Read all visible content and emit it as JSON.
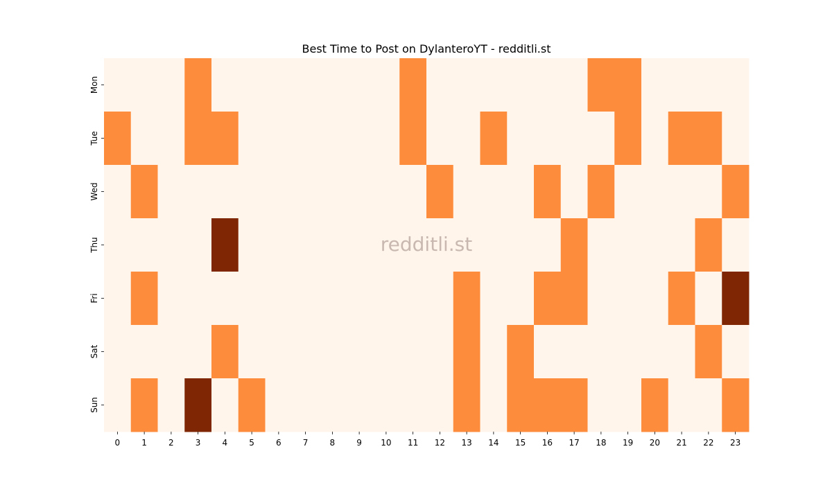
{
  "chart_data": {
    "type": "heatmap",
    "title": "Best Time to Post on DylanteroYT - redditli.st",
    "watermark": "redditli.st",
    "xlabel": "",
    "ylabel": "",
    "x": [
      "0",
      "1",
      "2",
      "3",
      "4",
      "5",
      "6",
      "7",
      "8",
      "9",
      "10",
      "11",
      "12",
      "13",
      "14",
      "15",
      "16",
      "17",
      "18",
      "19",
      "20",
      "21",
      "22",
      "23"
    ],
    "y": [
      "Mon",
      "Tue",
      "Wed",
      "Thu",
      "Fri",
      "Sat",
      "Sun"
    ],
    "colorscale": [
      "#fff5eb",
      "#fd8d3c",
      "#7f2704"
    ],
    "values": [
      [
        0,
        0,
        0,
        1,
        0,
        0,
        0,
        0,
        0,
        0,
        0,
        1,
        0,
        0,
        0,
        0,
        0,
        0,
        1,
        1,
        0,
        0,
        0,
        0
      ],
      [
        1,
        0,
        0,
        1,
        1,
        0,
        0,
        0,
        0,
        0,
        0,
        1,
        0,
        0,
        1,
        0,
        0,
        0,
        0,
        1,
        0,
        1,
        1,
        0
      ],
      [
        0,
        1,
        0,
        0,
        0,
        0,
        0,
        0,
        0,
        0,
        0,
        0,
        1,
        0,
        0,
        0,
        1,
        0,
        1,
        0,
        0,
        0,
        0,
        1
      ],
      [
        0,
        0,
        0,
        0,
        2,
        0,
        0,
        0,
        0,
        0,
        0,
        0,
        0,
        0,
        0,
        0,
        0,
        1,
        0,
        0,
        0,
        0,
        1,
        0
      ],
      [
        0,
        1,
        0,
        0,
        0,
        0,
        0,
        0,
        0,
        0,
        0,
        0,
        0,
        1,
        0,
        0,
        1,
        1,
        0,
        0,
        0,
        1,
        0,
        2
      ],
      [
        0,
        0,
        0,
        0,
        1,
        0,
        0,
        0,
        0,
        0,
        0,
        0,
        0,
        1,
        0,
        1,
        0,
        0,
        0,
        0,
        0,
        0,
        1,
        0
      ],
      [
        0,
        1,
        0,
        2,
        0,
        1,
        0,
        0,
        0,
        0,
        0,
        0,
        0,
        1,
        0,
        1,
        1,
        1,
        0,
        0,
        1,
        0,
        0,
        1
      ]
    ]
  }
}
